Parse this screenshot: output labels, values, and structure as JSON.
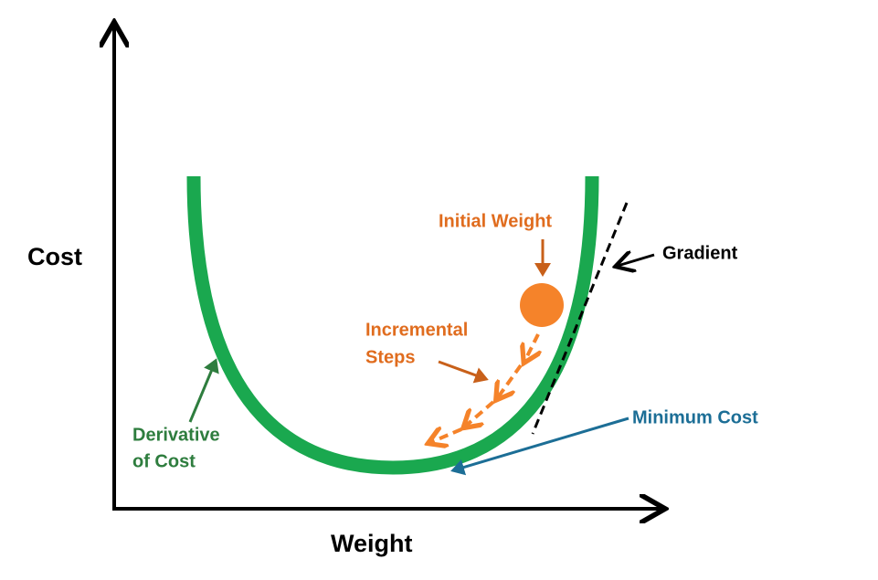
{
  "axes": {
    "y_label": "Cost",
    "x_label": "Weight"
  },
  "annotations": {
    "initial_weight": "Initial Weight",
    "gradient": "Gradient",
    "incremental_steps": [
      "Incremental",
      "Steps"
    ],
    "minimum_cost": "Minimum Cost",
    "derivative": [
      "Derivative",
      "of Cost"
    ]
  }
}
